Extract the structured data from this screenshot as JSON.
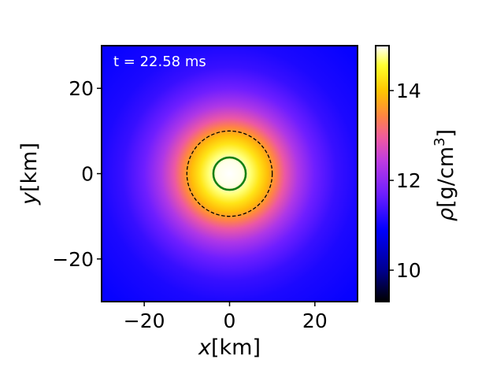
{
  "chart_data": {
    "type": "heatmap",
    "annotation": "t = 22.58 ms",
    "xlabel_var": "x",
    "xlabel_unit": "[km]",
    "ylabel_var": "y",
    "ylabel_unit": "[km]",
    "xlim": [
      -30,
      30
    ],
    "ylim": [
      -30,
      30
    ],
    "xticks": [
      -20,
      0,
      20
    ],
    "yticks": [
      -20,
      0,
      20
    ],
    "xtick_labels": [
      "−20",
      "0",
      "20"
    ],
    "ytick_labels": [
      "−20",
      "0",
      "20"
    ],
    "colorbar": {
      "label_var": "ρ",
      "label_unit_pre": "[g/cm",
      "label_unit_sup": "3",
      "label_unit_post": "]",
      "range": [
        9.3,
        15.0
      ],
      "ticks": [
        10,
        12,
        14
      ],
      "tick_labels": [
        "10",
        "12",
        "14"
      ],
      "colormap": "gnuplot2"
    },
    "density_profile": {
      "radius_km": [
        0,
        3,
        5,
        7,
        9,
        11,
        13,
        16,
        20,
        25,
        30,
        40
      ],
      "log_rho": [
        15.0,
        14.95,
        14.7,
        14.3,
        13.9,
        13.4,
        12.9,
        12.3,
        11.7,
        11.3,
        11.1,
        10.95
      ]
    },
    "contours": [
      {
        "style": "solid",
        "color": "#138013",
        "radius_km": 3.8
      },
      {
        "style": "dashed",
        "color": "#000000",
        "radius_km": 10.0
      }
    ]
  }
}
